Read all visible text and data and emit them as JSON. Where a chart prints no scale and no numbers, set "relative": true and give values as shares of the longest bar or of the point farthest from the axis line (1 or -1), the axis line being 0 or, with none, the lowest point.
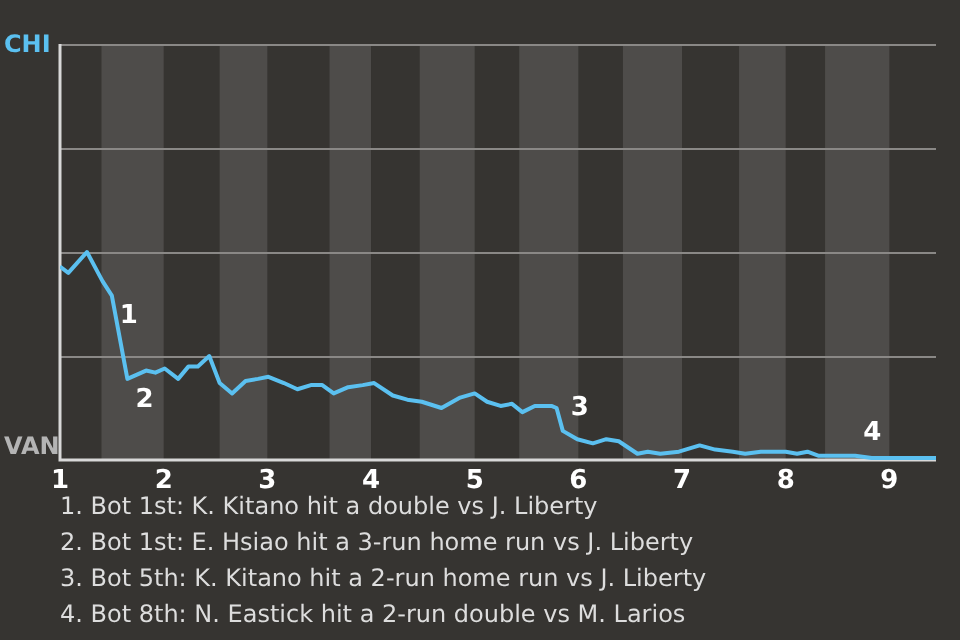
{
  "chart_data": {
    "type": "line",
    "relative": true,
    "x": [
      1,
      1.08,
      1.26,
      1.41,
      1.5,
      1.65,
      1.83,
      1.92,
      2.01,
      2.14,
      2.24,
      2.33,
      2.44,
      2.54,
      2.66,
      2.79,
      2.91,
      3.01,
      3.16,
      3.29,
      3.42,
      3.53,
      3.64,
      3.78,
      3.92,
      4.03,
      4.21,
      4.35,
      4.49,
      4.68,
      4.86,
      5,
      5.12,
      5.25,
      5.36,
      5.46,
      5.58,
      5.74,
      5.79,
      5.85,
      5.99,
      6.14,
      6.27,
      6.39,
      6.57,
      6.67,
      6.79,
      6.97,
      7.17,
      7.32,
      7.49,
      7.61,
      7.76,
      8,
      8.11,
      8.21,
      8.32,
      8.67,
      8.83,
      9.45
    ],
    "series": [
      {
        "values": [
          0.93,
          0.9,
          1,
          0.86,
          0.79,
          0.39,
          0.43,
          0.42,
          0.44,
          0.39,
          0.45,
          0.45,
          0.5,
          0.37,
          0.32,
          0.38,
          0.39,
          0.4,
          0.37,
          0.34,
          0.36,
          0.36,
          0.32,
          0.35,
          0.36,
          0.37,
          0.31,
          0.29,
          0.28,
          0.25,
          0.3,
          0.32,
          0.28,
          0.26,
          0.27,
          0.23,
          0.26,
          0.26,
          0.25,
          0.14,
          0.1,
          0.08,
          0.1,
          0.09,
          0.03,
          0.04,
          0.03,
          0.04,
          0.07,
          0.05,
          0.04,
          0.03,
          0.04,
          0.04,
          0.03,
          0.04,
          0.02,
          0.02,
          0.01,
          0.01
        ],
        "color": "#5bc0f0"
      }
    ],
    "xlim": [
      1,
      9.45
    ],
    "xticks": [
      1,
      2,
      3,
      4,
      5,
      6,
      7,
      8,
      9
    ],
    "ref_lines": [
      {
        "axis": "y",
        "value": 0.5,
        "color": "#8a8886"
      },
      {
        "axis": "y",
        "value": 1,
        "color": "#8a8886"
      },
      {
        "axis": "y",
        "value": 1.5,
        "color": "#8a8886"
      },
      {
        "axis": "y",
        "value": 2,
        "color": "#8a8886"
      }
    ],
    "marker": "none",
    "bands": [
      {
        "axis": "x",
        "from": 1.4,
        "to": 2,
        "color": "#4e4c4a"
      },
      {
        "axis": "x",
        "from": 2.54,
        "to": 3,
        "color": "#4e4c4a"
      },
      {
        "axis": "x",
        "from": 3.6,
        "to": 4,
        "color": "#4e4c4a"
      },
      {
        "axis": "x",
        "from": 4.47,
        "to": 5,
        "color": "#4e4c4a"
      },
      {
        "axis": "x",
        "from": 5.43,
        "to": 6,
        "color": "#4e4c4a"
      },
      {
        "axis": "x",
        "from": 6.43,
        "to": 7,
        "color": "#4e4c4a"
      },
      {
        "axis": "x",
        "from": 7.55,
        "to": 8,
        "color": "#4e4c4a"
      },
      {
        "axis": "x",
        "from": 8.38,
        "to": 9,
        "color": "#4e4c4a"
      }
    ],
    "annotations": [
      "CHI",
      "VAN",
      {
        "text": "1",
        "x": 1.5,
        "y": 0.79
      },
      {
        "text": "2",
        "x": 1.65,
        "y": 0.39
      },
      {
        "text": "3",
        "x": 5.85,
        "y": 0.14
      },
      {
        "text": "4",
        "x": 8.67,
        "y": 0.02
      },
      "1. Bot 1st: K. Kitano hit a double vs J. Liberty",
      "2. Bot 1st: E. Hsiao hit a 3-run home run vs J. Liberty",
      "3. Bot 5th: K. Kitano hit a 2-run home run vs J. Liberty",
      "4. Bot 8th: N. Eastick hit a 2-run double vs M. Larios"
    ]
  }
}
